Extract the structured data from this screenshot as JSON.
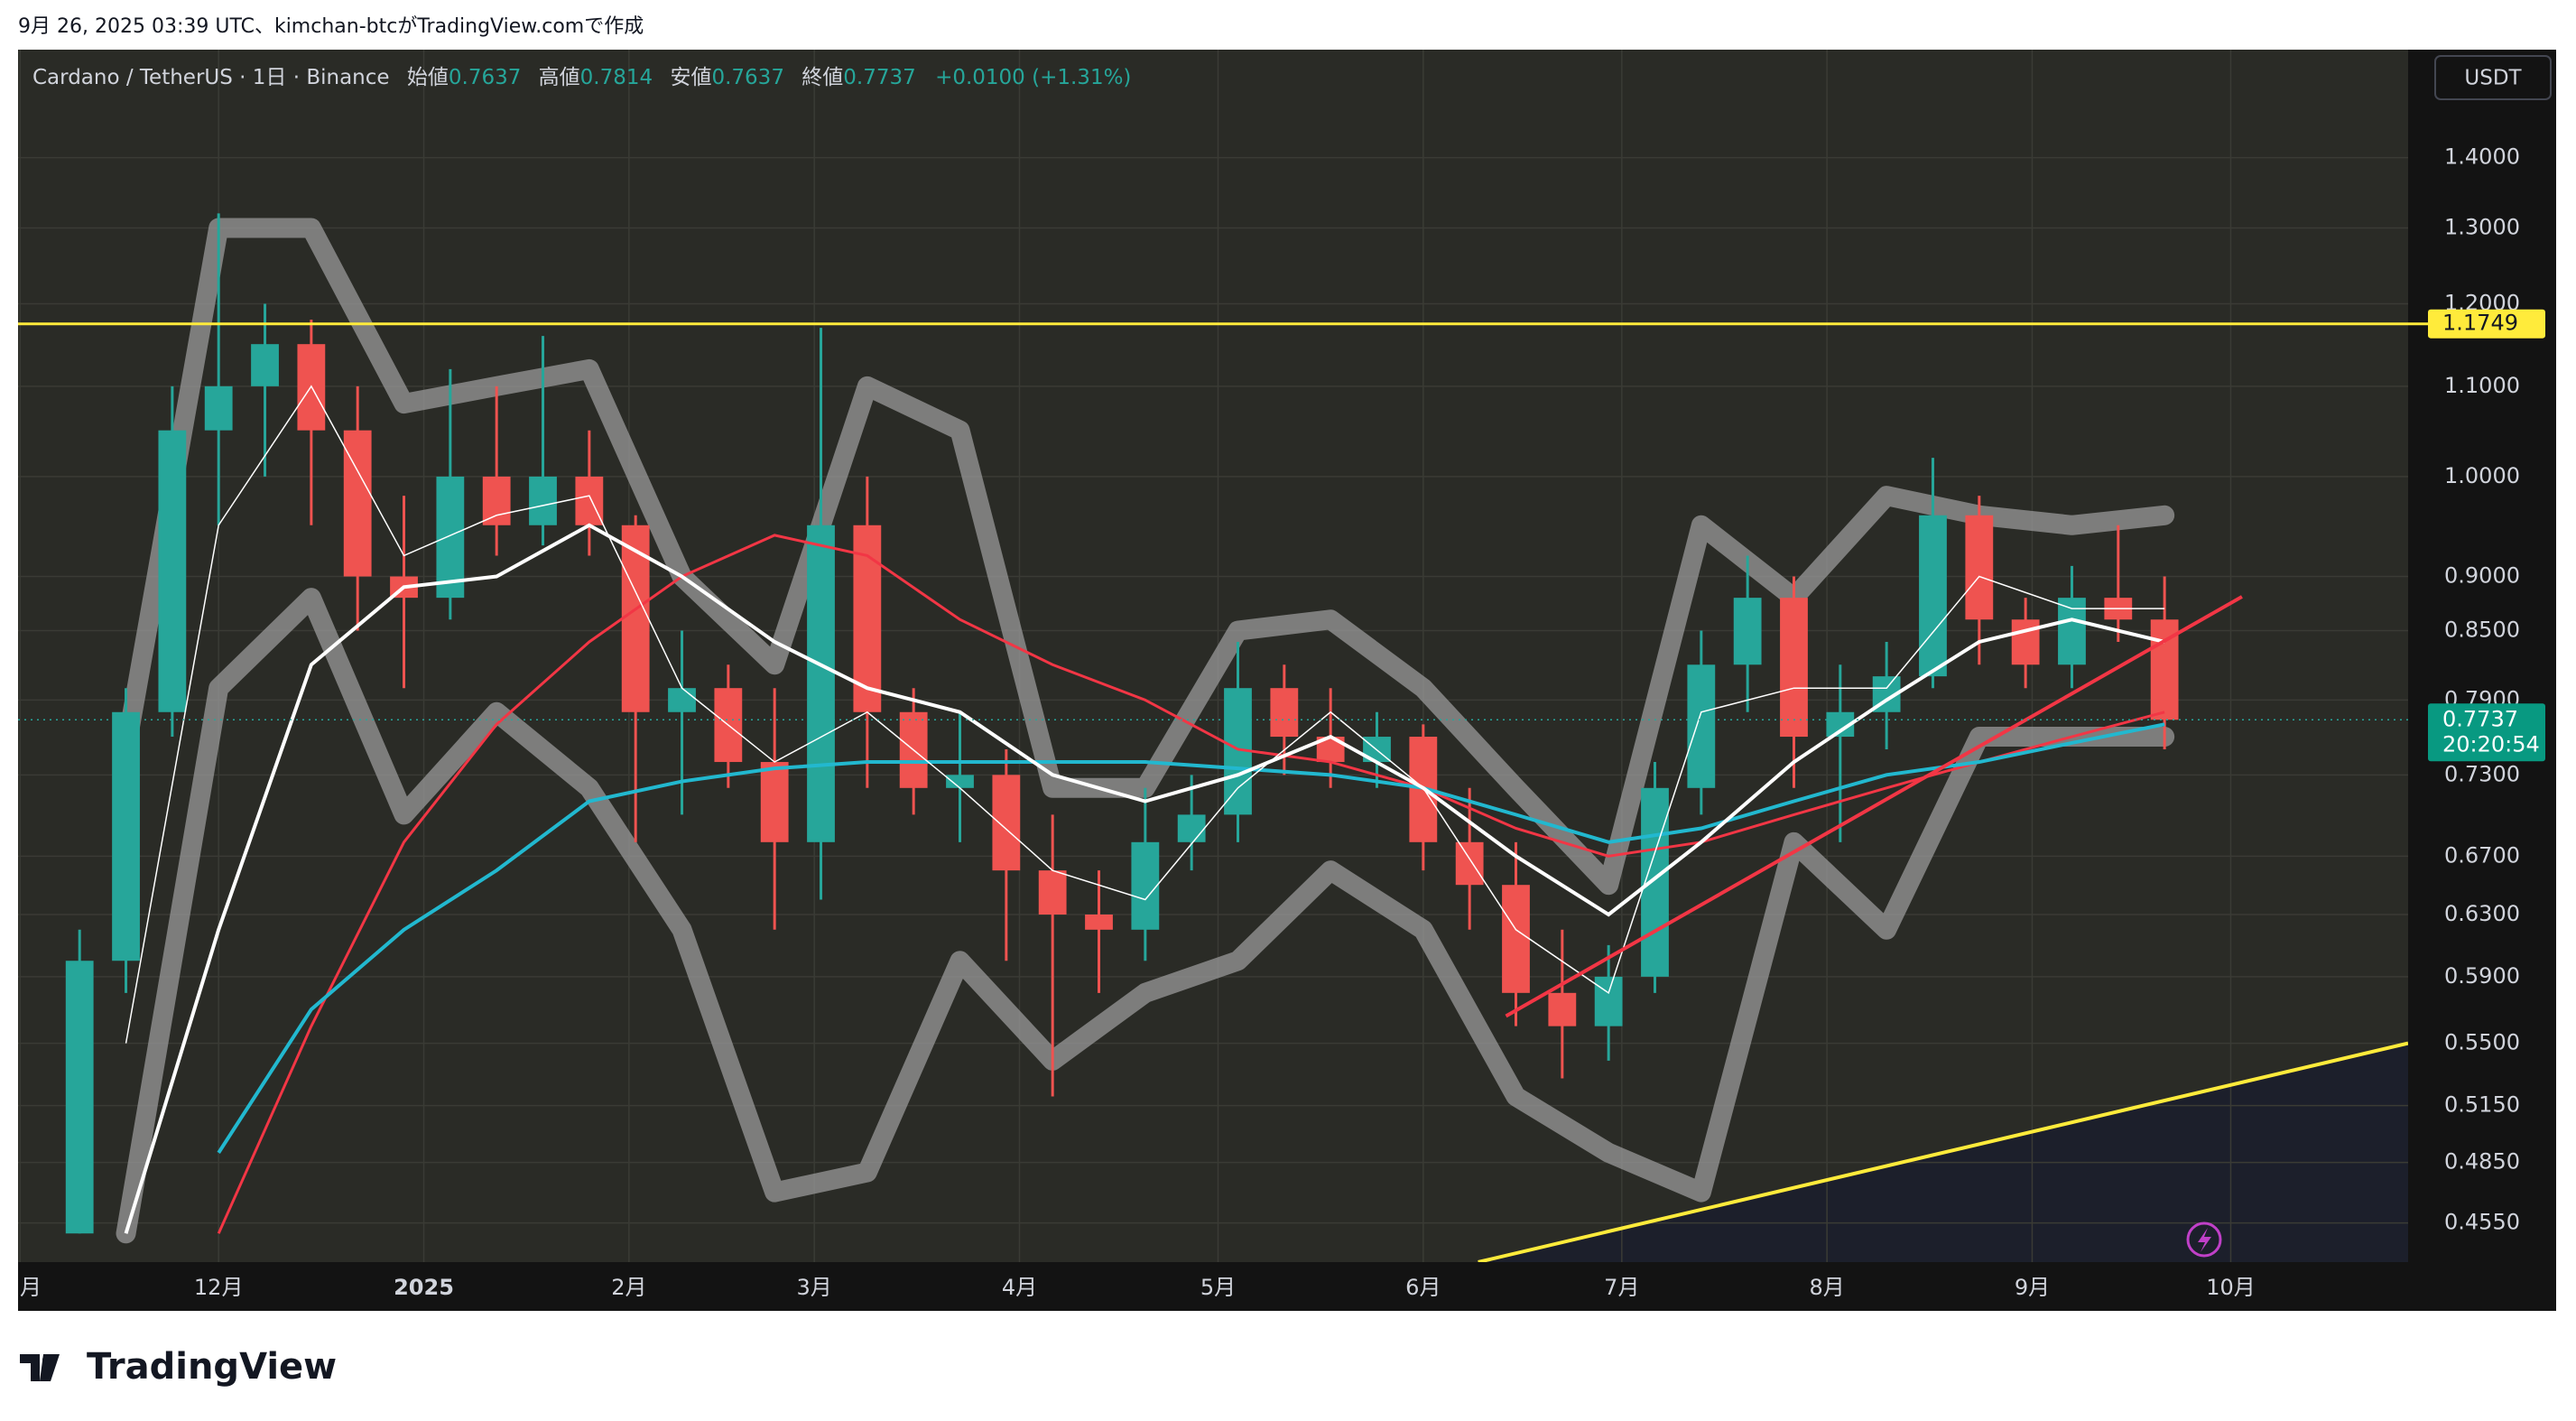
{
  "header": {
    "created": "9月 26, 2025 03:39 UTC、kimchan-btcがTradingView.comで作成"
  },
  "brand": "TradingView",
  "chart_data": {
    "type": "candlestick",
    "title": "Cardano / TetherUS · 1日 · Binance",
    "ohlc_labels": [
      "始値",
      "高値",
      "安値",
      "終値"
    ],
    "ohlc_values": [
      0.7637,
      0.7814,
      0.7637,
      0.7737
    ],
    "change": "+0.0100 (+1.31%)",
    "currency": "USDT",
    "countdown": "20:20:54",
    "log_scale": true,
    "grid": true,
    "up_color": "#26a69a",
    "down_color": "#ef5350",
    "xlim": [
      -30.3,
      330.8
    ],
    "xticks": [
      {
        "value": -30,
        "label": "月"
      },
      {
        "value": 0,
        "label": "12月"
      },
      {
        "value": 31,
        "label": "2025"
      },
      {
        "value": 62,
        "label": "2月"
      },
      {
        "value": 90,
        "label": "3月"
      },
      {
        "value": 121,
        "label": "4月"
      },
      {
        "value": 151,
        "label": "5月"
      },
      {
        "value": 182,
        "label": "6月"
      },
      {
        "value": 212,
        "label": "7月"
      },
      {
        "value": 243,
        "label": "8月"
      },
      {
        "value": 274,
        "label": "9月"
      },
      {
        "value": 304,
        "label": "10月"
      }
    ],
    "ylim": [
      0.4366,
      1.569
    ],
    "yticks": [
      {
        "value": 0.455,
        "label": "0.4550"
      },
      {
        "value": 0.485,
        "label": "0.4850"
      },
      {
        "value": 0.515,
        "label": "0.5150"
      },
      {
        "value": 0.55,
        "label": "0.5500"
      },
      {
        "value": 0.59,
        "label": "0.5900"
      },
      {
        "value": 0.63,
        "label": "0.6300"
      },
      {
        "value": 0.67,
        "label": "0.6700"
      },
      {
        "value": 0.73,
        "label": "0.7300"
      },
      {
        "value": 0.79,
        "label": "0.7900"
      },
      {
        "value": 0.85,
        "label": "0.8500"
      },
      {
        "value": 0.9,
        "label": "0.9000"
      },
      {
        "value": 1.0,
        "label": "1.0000"
      },
      {
        "value": 1.1,
        "label": "1.1000"
      },
      {
        "value": 1.2,
        "label": "1.2000"
      },
      {
        "value": 1.3,
        "label": "1.3000"
      },
      {
        "value": 1.4,
        "label": "1.4000"
      }
    ],
    "x": [
      -21,
      -14,
      -7,
      0,
      7,
      14,
      21,
      28,
      35,
      42,
      49,
      56,
      63,
      70,
      77,
      84,
      91,
      98,
      105,
      112,
      119,
      126,
      133,
      140,
      147,
      154,
      161,
      168,
      175,
      182,
      189,
      196,
      203,
      210,
      217,
      224,
      231,
      238,
      245,
      252,
      259,
      266,
      273,
      280,
      287,
      294
    ],
    "open": [
      0.45,
      0.6,
      0.78,
      1.05,
      1.1,
      1.15,
      1.05,
      0.9,
      0.88,
      1.0,
      0.95,
      1.0,
      0.95,
      0.78,
      0.8,
      0.74,
      0.68,
      0.95,
      0.78,
      0.72,
      0.73,
      0.66,
      0.63,
      0.62,
      0.68,
      0.7,
      0.8,
      0.76,
      0.74,
      0.76,
      0.68,
      0.65,
      0.58,
      0.56,
      0.59,
      0.72,
      0.82,
      0.88,
      0.76,
      0.78,
      0.81,
      0.96,
      0.86,
      0.82,
      0.88,
      0.86
    ],
    "high": [
      0.62,
      0.8,
      1.1,
      1.32,
      1.2,
      1.18,
      1.1,
      0.98,
      1.12,
      1.1,
      1.16,
      1.05,
      0.96,
      0.85,
      0.82,
      0.8,
      1.17,
      1.0,
      0.8,
      0.78,
      0.75,
      0.7,
      0.66,
      0.72,
      0.73,
      0.84,
      0.82,
      0.8,
      0.78,
      0.77,
      0.72,
      0.68,
      0.62,
      0.61,
      0.74,
      0.85,
      0.92,
      0.9,
      0.82,
      0.84,
      1.02,
      0.98,
      0.88,
      0.91,
      0.95,
      0.9
    ],
    "low": [
      0.45,
      0.58,
      0.76,
      0.95,
      1.0,
      0.95,
      0.85,
      0.8,
      0.86,
      0.92,
      0.93,
      0.92,
      0.68,
      0.7,
      0.72,
      0.62,
      0.64,
      0.72,
      0.7,
      0.68,
      0.6,
      0.52,
      0.58,
      0.6,
      0.66,
      0.68,
      0.73,
      0.72,
      0.72,
      0.66,
      0.62,
      0.56,
      0.53,
      0.54,
      0.58,
      0.7,
      0.78,
      0.72,
      0.68,
      0.75,
      0.8,
      0.82,
      0.8,
      0.8,
      0.84,
      0.75
    ],
    "close": [
      0.6,
      0.78,
      1.05,
      1.1,
      1.15,
      1.05,
      0.9,
      0.88,
      1.0,
      0.95,
      1.0,
      0.95,
      0.78,
      0.8,
      0.74,
      0.68,
      0.95,
      0.78,
      0.72,
      0.73,
      0.66,
      0.63,
      0.62,
      0.68,
      0.7,
      0.8,
      0.76,
      0.74,
      0.76,
      0.68,
      0.65,
      0.58,
      0.56,
      0.59,
      0.72,
      0.82,
      0.88,
      0.76,
      0.78,
      0.81,
      0.96,
      0.86,
      0.82,
      0.88,
      0.86,
      0.7737
    ],
    "overlay_x": [
      -28,
      -14,
      0,
      14,
      28,
      42,
      56,
      70,
      84,
      98,
      112,
      126,
      140,
      154,
      168,
      182,
      196,
      210,
      224,
      238,
      252,
      266,
      280,
      294
    ],
    "bands": [
      {
        "color": "#9a9a9a",
        "upper": [
          null,
          0.75,
          1.3,
          1.3,
          1.08,
          1.1,
          1.12,
          0.9,
          0.82,
          1.1,
          1.05,
          0.72,
          0.72,
          0.85,
          0.86,
          0.8,
          0.72,
          0.65,
          0.95,
          0.88,
          0.98,
          0.96,
          0.95,
          0.96
        ],
        "lower": [
          null,
          0.45,
          0.8,
          0.88,
          0.7,
          0.78,
          0.72,
          0.62,
          0.47,
          0.48,
          0.6,
          0.54,
          0.58,
          0.6,
          0.66,
          0.62,
          0.52,
          0.49,
          0.47,
          0.68,
          0.62,
          0.76,
          0.76,
          0.76
        ]
      }
    ],
    "overlays": [
      {
        "color": "#f23645",
        "width": 3,
        "values": [
          null,
          null,
          0.45,
          0.56,
          0.68,
          0.77,
          0.84,
          0.9,
          0.94,
          0.92,
          0.86,
          0.82,
          0.79,
          0.75,
          0.74,
          0.72,
          0.69,
          0.67,
          0.68,
          0.7,
          0.72,
          0.74,
          0.76,
          0.78
        ]
      },
      {
        "color": "#22b8cf",
        "width": 4,
        "values": [
          null,
          null,
          0.49,
          0.57,
          0.62,
          0.66,
          0.71,
          0.725,
          0.735,
          0.74,
          0.74,
          0.74,
          0.74,
          0.735,
          0.73,
          0.72,
          0.7,
          0.68,
          0.69,
          0.71,
          0.73,
          0.74,
          0.755,
          0.77
        ]
      },
      {
        "color": "#ffffff",
        "width": 4,
        "values": [
          null,
          0.45,
          0.62,
          0.82,
          0.89,
          0.9,
          0.95,
          0.9,
          0.84,
          0.8,
          0.78,
          0.73,
          0.71,
          0.73,
          0.76,
          0.72,
          0.67,
          0.63,
          0.68,
          0.74,
          0.79,
          0.84,
          0.86,
          0.84
        ]
      },
      {
        "color": "#ffffff",
        "width": 1.5,
        "values": [
          null,
          0.55,
          0.95,
          1.1,
          0.92,
          0.96,
          0.98,
          0.8,
          0.74,
          0.78,
          0.72,
          0.66,
          0.64,
          0.72,
          0.78,
          0.72,
          0.62,
          0.58,
          0.78,
          0.8,
          0.8,
          0.9,
          0.87,
          0.87
        ]
      }
    ],
    "hlines": [
      {
        "value": 1.1749,
        "color": "#ffeb3b"
      }
    ],
    "trendlines": [
      {
        "color": "#ffeb3b",
        "x": [
          190.3,
          330.8
        ],
        "y": [
          0.4366,
          0.55
        ]
      },
      {
        "color": "#f23645",
        "x": [
          194.5,
          305.7
        ],
        "y": [
          0.566,
          0.881
        ]
      }
    ]
  }
}
